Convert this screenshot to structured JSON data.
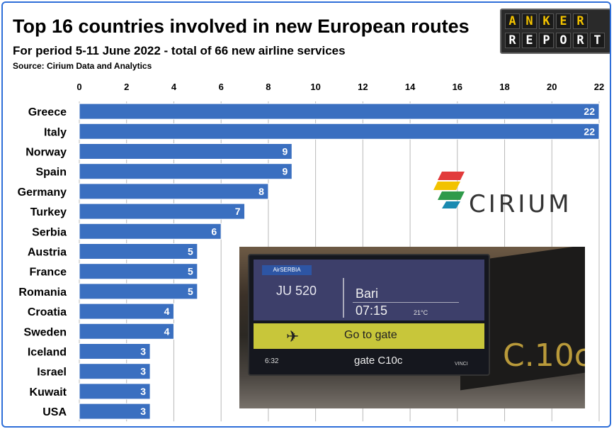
{
  "header": {
    "title": "Top 16 countries involved in new European routes",
    "subtitle": "For period 5-11 June 2022 - total of 66 new airline services",
    "source": "Source: Cirium Data and Analytics"
  },
  "logo": {
    "row1": [
      "A",
      "N",
      "K",
      "E",
      "R"
    ],
    "row2": [
      "R",
      "E",
      "P",
      "O",
      "R",
      "T"
    ]
  },
  "cirium_logo": {
    "text": "CIRIUM",
    "colors": [
      "#e23b3b",
      "#f2c200",
      "#2f9a4a",
      "#1a8ab0"
    ]
  },
  "photo": {
    "airline": "AirSERBIA",
    "flight": "JU 520",
    "destination": "Bari",
    "time": "07:15",
    "temperature": "21°C",
    "status": "Go to gate",
    "clock": "6:32",
    "gate": "gate C10c",
    "operator": "VINCI",
    "gate_sign": "C.10c"
  },
  "chart_data": {
    "type": "bar",
    "orientation": "horizontal",
    "title": "Top 16 countries involved in new European routes",
    "subtitle": "For period 5-11 June 2022 - total of 66 new airline services",
    "categories": [
      "Greece",
      "Italy",
      "Norway",
      "Spain",
      "Germany",
      "Turkey",
      "Serbia",
      "Austria",
      "France",
      "Romania",
      "Croatia",
      "Sweden",
      "Iceland",
      "Israel",
      "Kuwait",
      "USA"
    ],
    "values": [
      22,
      22,
      9,
      9,
      8,
      7,
      6,
      5,
      5,
      5,
      4,
      4,
      3,
      3,
      3,
      3
    ],
    "xlim": [
      0,
      22
    ],
    "xticks": [
      0,
      2,
      4,
      6,
      8,
      10,
      12,
      14,
      16,
      18,
      20,
      22
    ],
    "xaxis_position": "top",
    "grid": true,
    "data_labels": true,
    "bar_color": "#3a6fc0"
  }
}
